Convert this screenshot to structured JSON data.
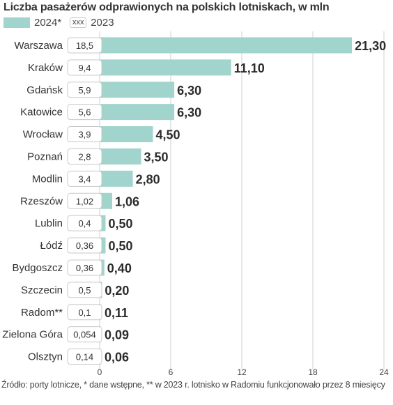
{
  "chart_data": {
    "type": "bar",
    "orientation": "horizontal",
    "title": "Liczba pasażerów odprawionych na  polskich lotniskach, w mln",
    "series": [
      {
        "name": "2024*",
        "color": "#a1d4cc",
        "values": [
          21.3,
          11.1,
          6.3,
          6.3,
          4.5,
          3.5,
          2.8,
          1.06,
          0.5,
          0.5,
          0.4,
          0.2,
          0.11,
          0.09,
          0.06
        ],
        "labels": [
          "21,30",
          "11,10",
          "6,30",
          "6,30",
          "4,50",
          "3,50",
          "2,80",
          "1,06",
          "0,50",
          "0,50",
          "0,40",
          "0,20",
          "0,11",
          "0,09",
          "0,06"
        ]
      },
      {
        "name": "2023",
        "display": "box",
        "values": [
          18.5,
          9.4,
          5.9,
          5.6,
          3.9,
          2.8,
          3.4,
          1.02,
          0.4,
          0.36,
          0.36,
          0.5,
          0.1,
          0.054,
          0.14
        ],
        "labels": [
          "18,5",
          "9,4",
          "5,9",
          "5,6",
          "3,9",
          "2,8",
          "3,4",
          "1,02",
          "0,4",
          "0,36",
          "0,36",
          "0,5",
          "0,1",
          "0,054",
          "0,14"
        ]
      }
    ],
    "categories": [
      "Warszawa",
      "Kraków",
      "Gdańsk",
      "Katowice",
      "Wrocław",
      "Poznań",
      "Modlin",
      "Rzeszów",
      "Lublin",
      "Łódź",
      "Bydgoszcz",
      "Szczecin",
      "Radom**",
      "Zielona Góra",
      "Olsztyn"
    ],
    "xlim": [
      0,
      24
    ],
    "xticks": [
      0,
      6,
      12,
      18,
      24
    ],
    "xlabel": "",
    "ylabel": "",
    "grid": true,
    "legend_position": "top-left"
  },
  "legend": {
    "label_2024": "2024*",
    "box_sample": "xxx",
    "label_2023": "2023"
  },
  "footnote": "Źródło: porty lotnicze, * dane wstępne, ** w 2023 r. lotnisko w Radomiu  funkcjonowało przez 8 miesięcy",
  "colors": {
    "bar": "#a1d4cc",
    "text": "#2b2b2b",
    "grid": "#cfcfcf",
    "box_border": "#c8c8c8"
  }
}
